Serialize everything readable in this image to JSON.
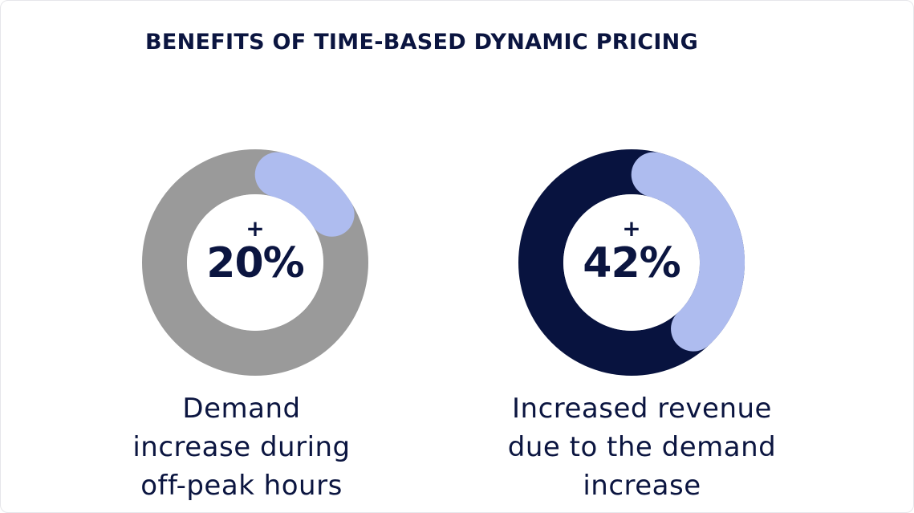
{
  "title": "BENEFITS OF TIME-BASED DYNAMIC PRICING",
  "colors": {
    "title": "#0b1540",
    "highlight": "#aebcef",
    "track_gray": "#9a9a9a",
    "track_navy": "#08133f",
    "center": "#ffffff"
  },
  "chart_data": [
    {
      "type": "pie",
      "style": "donut",
      "value": 20,
      "unit": "%",
      "value_label_prefix": "+",
      "value_label": "20%",
      "caption_lines": [
        "Demand",
        "increase during",
        "off-peak hours"
      ],
      "highlight_color": "#aebcef",
      "track_color": "#9a9a9a"
    },
    {
      "type": "pie",
      "style": "donut",
      "value": 42,
      "unit": "%",
      "value_label_prefix": "+",
      "value_label": "42%",
      "caption_lines": [
        "Increased revenue",
        "due to the demand",
        "increase"
      ],
      "highlight_color": "#aebcef",
      "track_color": "#08133f"
    }
  ]
}
